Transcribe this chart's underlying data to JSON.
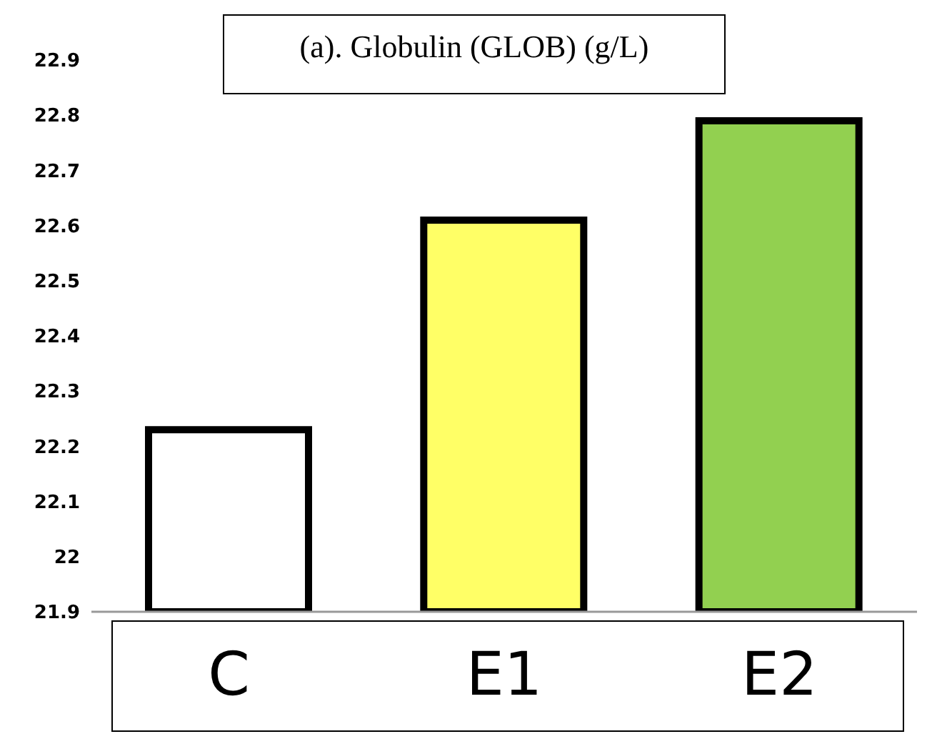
{
  "chart_data": {
    "type": "bar",
    "title": "(a). Globulin (GLOB) (g/L)",
    "categories": [
      "C",
      "E1",
      "E2"
    ],
    "values": [
      22.23,
      22.61,
      22.79
    ],
    "colors": [
      "#ffffff",
      "#ffff66",
      "#92d050"
    ],
    "ylim": [
      21.9,
      22.9
    ],
    "yticks": [
      21.9,
      {
        "value": 22,
        "label": "22"
      },
      22.1,
      22.2,
      22.3,
      22.4,
      22.5,
      22.6,
      22.7,
      22.8,
      22.9
    ],
    "grid": false
  }
}
